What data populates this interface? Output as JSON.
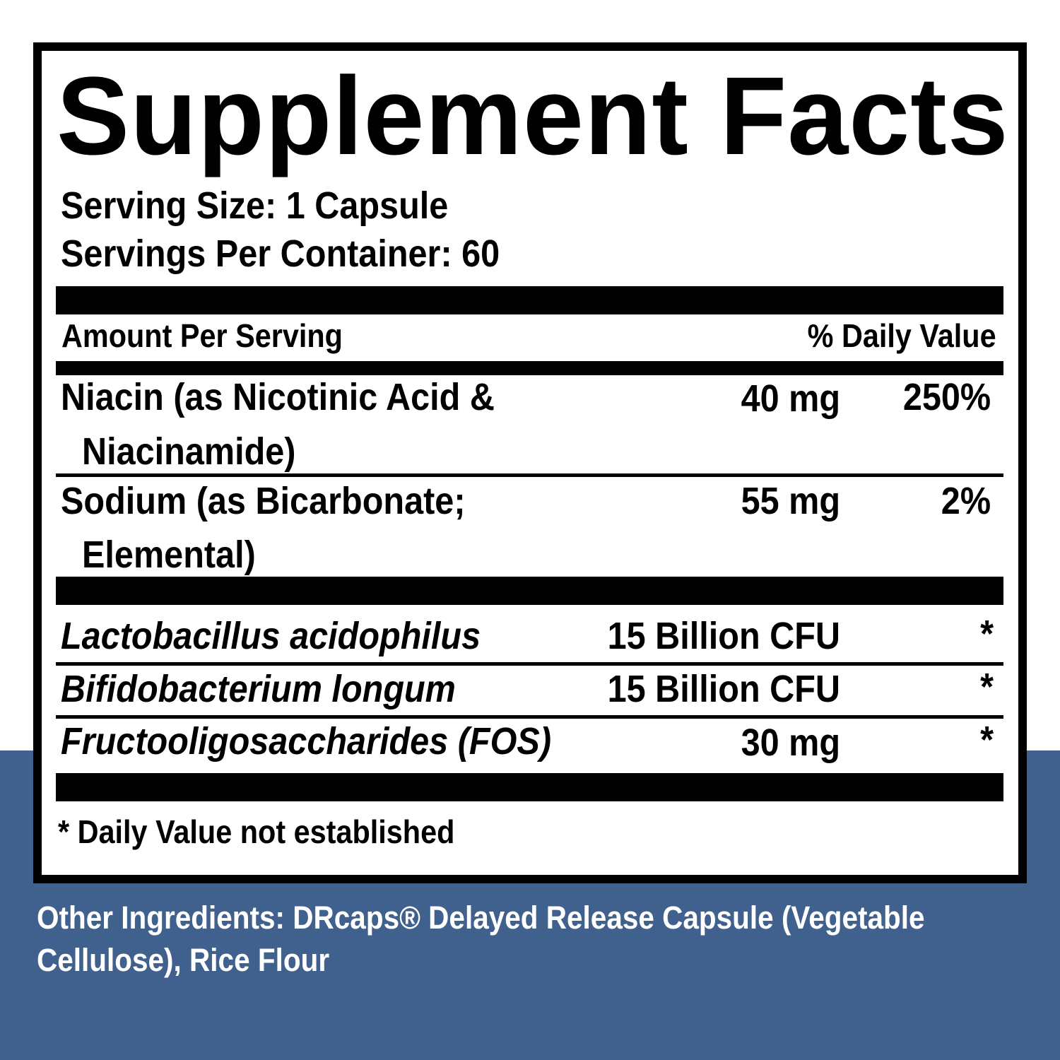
{
  "title": "Supplement Facts",
  "serving_size": "Serving Size: 1 Capsule",
  "servings_per_container": "Servings Per Container: 60",
  "header": {
    "amount_per_serving": "Amount Per Serving",
    "daily_value": "% Daily Value"
  },
  "vitamins": [
    {
      "name_line1": "Niacin (as Nicotinic Acid &",
      "name_line2": "Niacinamide)",
      "amount": "40 mg",
      "dv": "250%"
    },
    {
      "name_line1": "Sodium (as Bicarbonate;",
      "name_line2": "Elemental)",
      "amount": "55 mg",
      "dv": "2%"
    }
  ],
  "other_items": [
    {
      "name": "Lactobacillus acidophilus",
      "amount": "15 Billion CFU",
      "dv": "*"
    },
    {
      "name": "Bifidobacterium longum",
      "amount": "15 Billion CFU",
      "dv": "*"
    },
    {
      "name": "Fructooligosaccharides (FOS)",
      "amount": "30 mg",
      "dv": "*"
    }
  ],
  "footnote": "* Daily Value not established",
  "other_ingredients": {
    "line1": "Other Ingredients: DRcaps® Delayed Release Capsule (Vegetable",
    "line2": "Cellulose), Rice Flour"
  },
  "colors": {
    "background_blue": "#40608d",
    "label_black": "#000000"
  }
}
